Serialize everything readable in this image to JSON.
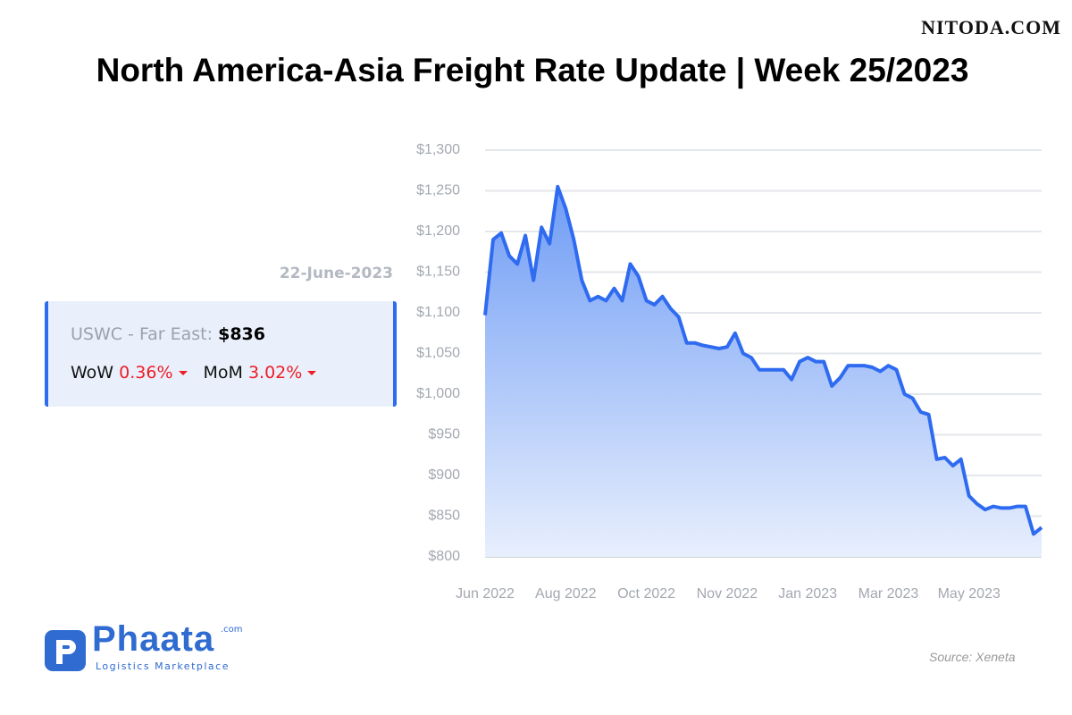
{
  "watermark": "NITODA.COM",
  "date_label": "22-June-2023",
  "card": {
    "route": "USWC - Far East:",
    "price": "$836",
    "wow_label": "WoW",
    "wow": "0.36%",
    "mom_label": "MoM",
    "mom": "3.02%"
  },
  "logo": {
    "name": "Phaata",
    "suffix": ".com",
    "tagline": "Logistics Marketplace"
  },
  "source": "Source: Xeneta",
  "chart_data": {
    "type": "line",
    "title": "North America-Asia Freight Rate Update | Week 25/2023",
    "categories": [
      "Jun 2022",
      null,
      null,
      null,
      null,
      null,
      null,
      null,
      null,
      null,
      "Aug 2022",
      null,
      null,
      null,
      null,
      null,
      null,
      null,
      null,
      null,
      "Oct 2022",
      null,
      null,
      null,
      null,
      null,
      null,
      null,
      null,
      null,
      "Nov 2022",
      null,
      null,
      null,
      null,
      null,
      null,
      null,
      null,
      null,
      "Jan 2023",
      null,
      null,
      null,
      null,
      null,
      null,
      null,
      null,
      null,
      "Mar 2023",
      null,
      null,
      null,
      null,
      null,
      null,
      null,
      null,
      null,
      "May 2023",
      null,
      null,
      null,
      null,
      null,
      null,
      null,
      null,
      null
    ],
    "values": [
      1097,
      1190,
      1198,
      1170,
      1160,
      1195,
      1140,
      1205,
      1185,
      1255,
      1228,
      1190,
      1140,
      1115,
      1120,
      1115,
      1130,
      1115,
      1160,
      1145,
      1115,
      1110,
      1120,
      1105,
      1095,
      1063,
      1063,
      1060,
      1058,
      1056,
      1058,
      1075,
      1050,
      1045,
      1030,
      1030,
      1030,
      1030,
      1018,
      1040,
      1045,
      1040,
      1040,
      1010,
      1020,
      1035,
      1035,
      1035,
      1033,
      1028,
      1035,
      1030,
      1000,
      995,
      978,
      975,
      920,
      922,
      912,
      920,
      875,
      865,
      858,
      862,
      860,
      860,
      862,
      862,
      828,
      836
    ],
    "color": "#2f6bf0",
    "ylim": [
      800,
      1300
    ],
    "yticks": [
      {
        "value": 800,
        "label": "$800"
      },
      {
        "value": 850,
        "label": "$850"
      },
      {
        "value": 900,
        "label": "$900"
      },
      {
        "value": 950,
        "label": "$950"
      },
      {
        "value": 1000,
        "label": "$1,000"
      },
      {
        "value": 1050,
        "label": "$1,050"
      },
      {
        "value": 1100,
        "label": "$1,100"
      },
      {
        "value": 1150,
        "label": "$1,150"
      },
      {
        "value": 1200,
        "label": "$1,200"
      },
      {
        "value": 1250,
        "label": "$1,250"
      },
      {
        "value": 1300,
        "label": "$1,300"
      }
    ],
    "grid": true
  }
}
